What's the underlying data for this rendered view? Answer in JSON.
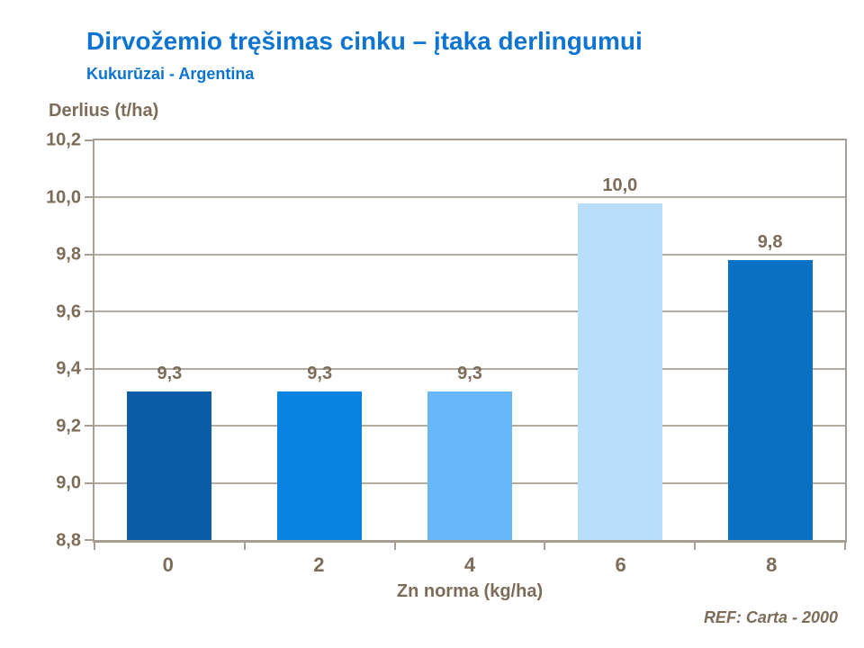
{
  "slide": {
    "title": "Dirvožemio tręšimas cinku – įtaka derlingumui",
    "subtitle": "Kukurūzai - Argentina",
    "reference": "REF: Carta - 2000"
  },
  "colors": {
    "title_blue": "#0d74d1",
    "text_brown": "#7d6c58",
    "gridline": "#b4aba0",
    "axis_border": "#a79d90",
    "background": "#ffffff",
    "bar_colors": [
      "#0b5ba6",
      "#0984e3",
      "#67b7fa",
      "#b9dcfa",
      "#0a70c4"
    ]
  },
  "chart_data": {
    "type": "bar",
    "title": "Dirvožemio tręšimas cinku – įtaka derlingumui",
    "subtitle": "Kukurūzai - Argentina",
    "ylabel": "Derlius (t/ha)",
    "xlabel": "Zn norma (kg/ha)",
    "categories": [
      "0",
      "2",
      "4",
      "6",
      "8"
    ],
    "values": [
      9.32,
      9.32,
      9.32,
      9.98,
      9.78
    ],
    "bar_labels": [
      "9,3",
      "9,3",
      "9,3",
      "10,0",
      "9,8"
    ],
    "ylim": [
      8.8,
      10.2
    ],
    "ytick_step": 0.2,
    "yticks": [
      "10,2",
      "10,0",
      "9,8",
      "9,6",
      "9,4",
      "9,2",
      "9,0",
      "8,8"
    ],
    "grid": true,
    "legend_position": "none",
    "annotation": "REF: Carta - 2000"
  }
}
